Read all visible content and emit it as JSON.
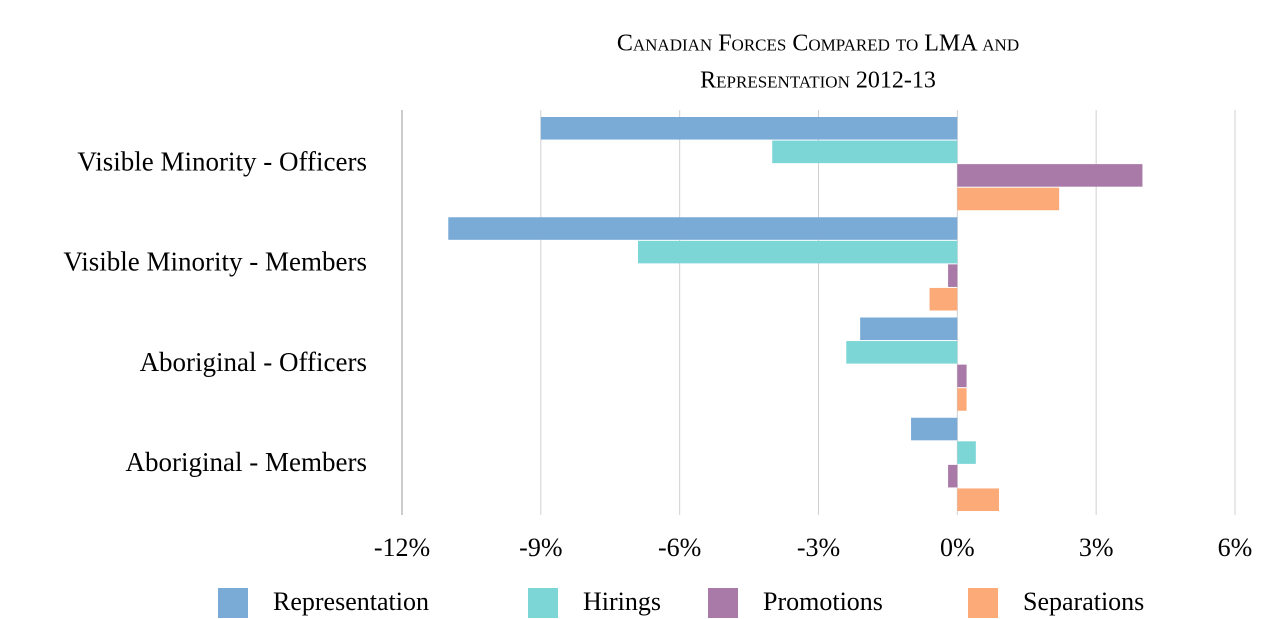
{
  "chart_data": {
    "type": "bar",
    "orientation": "horizontal",
    "title": [
      "Canadian Forces  Compared to LMA and",
      "Representation 2012-13"
    ],
    "categories": [
      "Visible Minority - Officers",
      "Visible Minority - Members",
      "Aboriginal - Officers",
      "Aboriginal - Members"
    ],
    "series": [
      {
        "name": "Representation",
        "color": "#7aaad6",
        "values": [
          -9.0,
          -11.0,
          -2.1,
          -1.0
        ]
      },
      {
        "name": "Hirings",
        "color": "#7dd6d6",
        "values": [
          -4.0,
          -6.9,
          -2.4,
          0.4
        ]
      },
      {
        "name": "Promotions",
        "color": "#a97aa8",
        "values": [
          4.0,
          -0.2,
          0.2,
          -0.2
        ]
      },
      {
        "name": "Separations",
        "color": "#fdaa79",
        "values": [
          2.2,
          -0.6,
          0.2,
          0.9
        ]
      }
    ],
    "xlim": [
      -12,
      6
    ],
    "xticks": [
      {
        "value": -12,
        "label": "-12%"
      },
      {
        "value": -9,
        "label": "-9%"
      },
      {
        "value": -6,
        "label": "-6%"
      },
      {
        "value": -3,
        "label": "-3%"
      },
      {
        "value": 0,
        "label": "0%"
      },
      {
        "value": 3,
        "label": "3%"
      },
      {
        "value": 6,
        "label": "6%"
      }
    ],
    "grid": true,
    "legend": "bottom"
  }
}
